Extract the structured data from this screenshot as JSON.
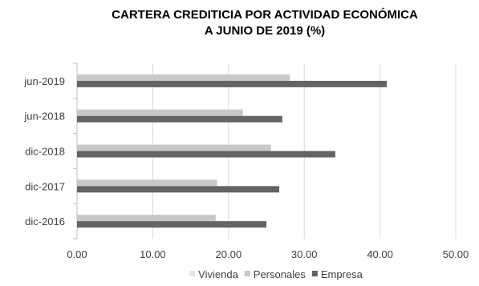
{
  "chart_data": {
    "type": "bar",
    "orientation": "horizontal",
    "title": [
      "CARTERA CREDITICIA POR ACTIVIDAD ECONÓMICA",
      "A JUNIO DE 2019 (%)"
    ],
    "categories": [
      "jun-2019",
      "jun-2018",
      "dic-2018",
      "dic-2017",
      "dic-2016"
    ],
    "series": [
      {
        "name": "Vivienda",
        "color": "#e6e6e6",
        "values": [
          0,
          0,
          0,
          0,
          0
        ]
      },
      {
        "name": "Personales",
        "color": "#c8c8c8",
        "values": [
          28.1,
          21.9,
          25.6,
          18.5,
          18.3
        ]
      },
      {
        "name": "Empresa",
        "color": "#646464",
        "values": [
          40.9,
          27.1,
          34.1,
          26.7,
          25.0
        ]
      }
    ],
    "xlim": [
      0,
      50
    ],
    "xticks": [
      "0.00",
      "10.00",
      "20.00",
      "30.00",
      "40.00",
      "50.00"
    ],
    "grid": true,
    "legend_position": "bottom"
  }
}
